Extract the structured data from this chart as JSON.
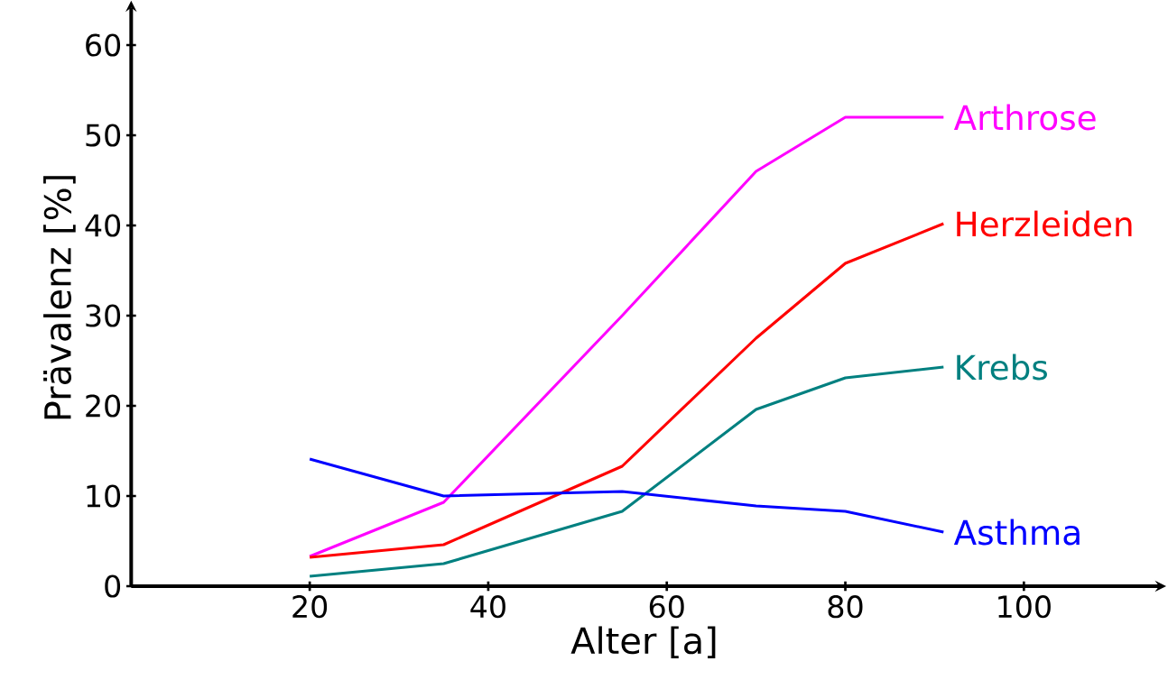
{
  "chart_data": {
    "type": "line",
    "xlabel": "Alter [a]",
    "ylabel": "Prävalenz [%]",
    "legend": false,
    "marker": "none",
    "line_style": "solid",
    "xlim": [
      0,
      115
    ],
    "ylim": [
      0,
      64
    ],
    "xticks": [
      20,
      40,
      60,
      80,
      100
    ],
    "yticks": [
      0,
      10,
      20,
      30,
      40,
      50,
      60
    ],
    "x": [
      20,
      35,
      55,
      70,
      80,
      91
    ],
    "series": [
      {
        "name": "Arthrose",
        "color": "#ff00ff",
        "values": [
          3.3,
          9.3,
          30,
          46,
          52,
          52
        ]
      },
      {
        "name": "Herzleiden",
        "color": "#ff0000",
        "values": [
          3.2,
          4.6,
          13.3,
          27.5,
          35.8,
          40.2
        ]
      },
      {
        "name": "Krebs",
        "color": "#008080",
        "values": [
          1.1,
          2.5,
          8.3,
          19.6,
          23.1,
          24.3
        ]
      },
      {
        "name": "Asthma",
        "color": "#0000ff",
        "values": [
          14.1,
          10,
          10.5,
          8.9,
          8.3,
          6
        ]
      }
    ]
  }
}
